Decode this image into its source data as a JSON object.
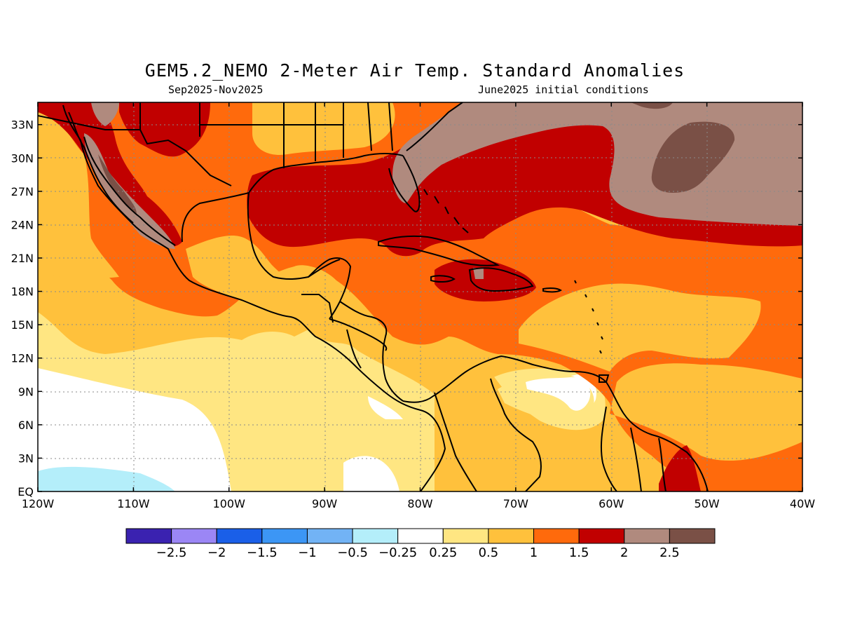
{
  "title": "GEM5.2_NEMO 2-Meter Air Temp. Standard Anomalies",
  "period": "Sep2025-Nov2025",
  "init": "June2025 initial conditions",
  "lat_labels": [
    "EQ",
    "3N",
    "6N",
    "9N",
    "12N",
    "15N",
    "18N",
    "21N",
    "24N",
    "27N",
    "30N",
    "33N"
  ],
  "lon_labels": [
    "120W",
    "110W",
    "100W",
    "90W",
    "80W",
    "70W",
    "60W",
    "50W",
    "40W"
  ],
  "colorbar": {
    "colors": [
      "#3a22b0",
      "#9b86f5",
      "#1a5fe8",
      "#3c96f5",
      "#72b3f5",
      "#b4eefa",
      "#ffffff",
      "#ffe682",
      "#ffc13c",
      "#ff6a0c",
      "#c10000",
      "#b08a7e",
      "#7a5046"
    ],
    "labels": [
      "-2.5",
      "-2",
      "-1.5",
      "-1",
      "-0.5",
      "-0.25",
      "0.25",
      "0.5",
      "1",
      "1.5",
      "2",
      "2.5"
    ]
  },
  "map_data": {
    "lon_range": [
      -120,
      -40
    ],
    "lat_range": [
      0,
      35
    ],
    "variable": "2-meter air temperature standard anomaly",
    "features": [
      "land-outlines",
      "grid-lines"
    ],
    "background_category": "0.5 to 1"
  }
}
